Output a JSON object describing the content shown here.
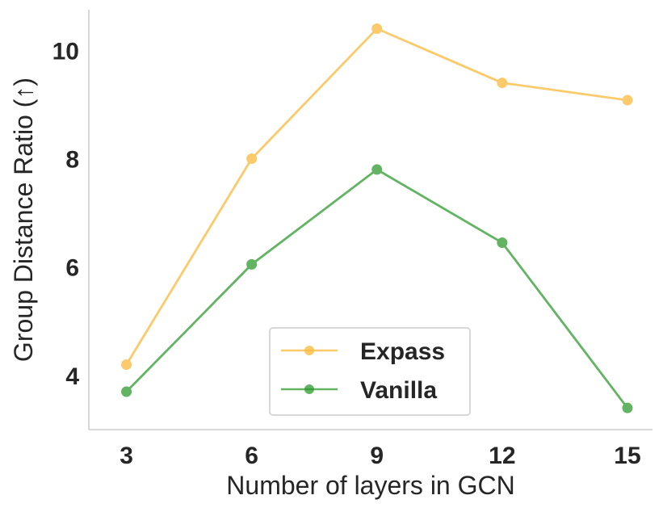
{
  "chart_data": {
    "type": "line",
    "x": [
      3,
      6,
      9,
      12,
      15
    ],
    "xticks": [
      "3",
      "6",
      "9",
      "12",
      "15"
    ],
    "yticks": [
      "4",
      "6",
      "8",
      "10"
    ],
    "xlabel": "Number of layers in GCN",
    "ylabel": "Group Distance Ratio (↑)",
    "xlim": [
      2.1,
      15.6
    ],
    "ylim": [
      3.0,
      10.75
    ],
    "grid": false,
    "legend_position": "bottom-center",
    "series": [
      {
        "name": "Expass",
        "color": "#f9b93a",
        "values": [
          4.2,
          8.0,
          10.4,
          9.4,
          9.08
        ]
      },
      {
        "name": "Vanilla",
        "color": "#2e9a2e",
        "values": [
          3.7,
          6.05,
          7.8,
          6.45,
          3.4
        ]
      }
    ]
  }
}
